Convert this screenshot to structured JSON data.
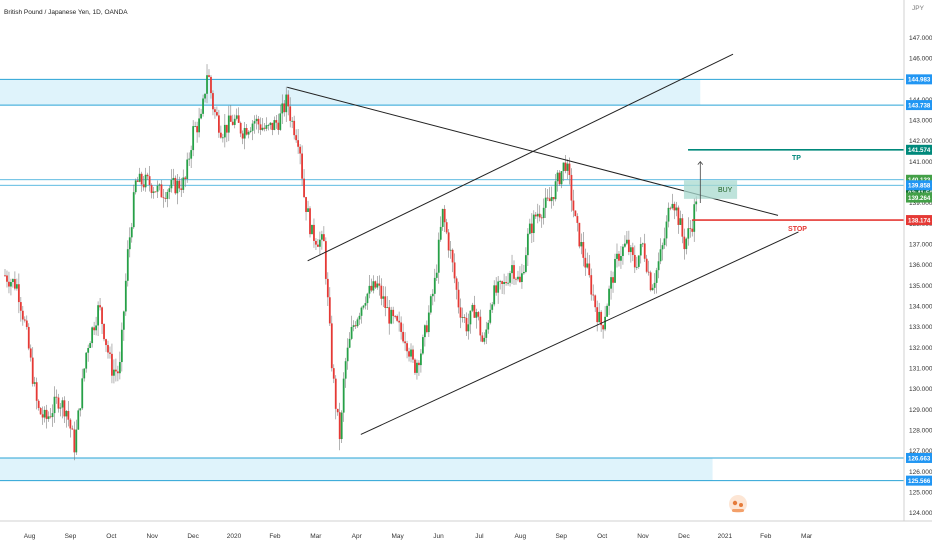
{
  "header": {
    "symbol_title": "British Pound / Japanese Yen, 1D, OANDA",
    "currency": "JPY"
  },
  "colors": {
    "up": "#26a047",
    "down": "#e53935",
    "wick": "#808080",
    "zone_fill": "#dff3fb",
    "zone_line": "#29a3d6",
    "trend_line": "#222222",
    "tp": "#00897b",
    "stop": "#e53935",
    "price_bg": "#43a047",
    "timer_bg": "#0d6e2c",
    "level_blue": "#2196f3",
    "buy_zone": "#a8d9cf"
  },
  "chart_data": {
    "type": "candlestick",
    "title": "British Pound / Japanese Yen, 1D, OANDA",
    "ylim": [
      123.9,
      147.3
    ],
    "y_ticks": [
      "124.000",
      "125.000",
      "126.000",
      "127.000",
      "128.000",
      "129.000",
      "130.000",
      "131.000",
      "132.000",
      "133.000",
      "134.000",
      "135.000",
      "136.000",
      "137.000",
      "138.000",
      "139.000",
      "140.000",
      "141.000",
      "142.000",
      "143.000",
      "144.000",
      "145.000",
      "146.000",
      "147.000"
    ],
    "x_ticks": [
      {
        "label": "Aug",
        "t": 0.6
      },
      {
        "label": "Sep",
        "t": 1.6
      },
      {
        "label": "Oct",
        "t": 2.6
      },
      {
        "label": "Nov",
        "t": 3.6
      },
      {
        "label": "Dec",
        "t": 4.6
      },
      {
        "label": "2020",
        "t": 5.6
      },
      {
        "label": "Feb",
        "t": 6.6
      },
      {
        "label": "Mar",
        "t": 7.6
      },
      {
        "label": "Apr",
        "t": 8.6
      },
      {
        "label": "May",
        "t": 9.6
      },
      {
        "label": "Jun",
        "t": 10.6
      },
      {
        "label": "Jul",
        "t": 11.6
      },
      {
        "label": "Aug",
        "t": 12.6
      },
      {
        "label": "Sep",
        "t": 13.6
      },
      {
        "label": "Oct",
        "t": 14.6
      },
      {
        "label": "Nov",
        "t": 15.6
      },
      {
        "label": "Dec",
        "t": 16.6
      },
      {
        "label": "2021",
        "t": 17.6
      },
      {
        "label": "Feb",
        "t": 18.6
      },
      {
        "label": "Mar",
        "t": 19.6
      }
    ],
    "price_path": [
      [
        0,
        135.5
      ],
      [
        0.3,
        135.0
      ],
      [
        0.5,
        133.0
      ],
      [
        0.8,
        129.0
      ],
      [
        1.0,
        128.5
      ],
      [
        1.3,
        129.5
      ],
      [
        1.5,
        129.0
      ],
      [
        1.7,
        127.2
      ],
      [
        2.0,
        132.0
      ],
      [
        2.3,
        134.0
      ],
      [
        2.6,
        131.0
      ],
      [
        2.8,
        130.8
      ],
      [
        3.0,
        136.5
      ],
      [
        3.2,
        140.0
      ],
      [
        3.5,
        140.0
      ],
      [
        3.8,
        139.5
      ],
      [
        4.1,
        139.8
      ],
      [
        4.4,
        140.0
      ],
      [
        4.6,
        142.5
      ],
      [
        4.8,
        143.0
      ],
      [
        4.95,
        145.5
      ],
      [
        5.1,
        143.5
      ],
      [
        5.3,
        142.5
      ],
      [
        5.6,
        143.0
      ],
      [
        5.8,
        142.5
      ],
      [
        6.1,
        143.0
      ],
      [
        6.4,
        142.5
      ],
      [
        6.7,
        143.0
      ],
      [
        6.9,
        144.0
      ],
      [
        7.0,
        143.0
      ],
      [
        7.2,
        142.0
      ],
      [
        7.3,
        139.5
      ],
      [
        7.5,
        137.5
      ],
      [
        7.8,
        137.0
      ],
      [
        8.0,
        131.0
      ],
      [
        8.1,
        129.0
      ],
      [
        8.2,
        127.5
      ],
      [
        8.3,
        131.0
      ],
      [
        8.5,
        133.0
      ],
      [
        8.8,
        134.5
      ],
      [
        9.1,
        135.0
      ],
      [
        9.4,
        133.5
      ],
      [
        9.6,
        133.0
      ],
      [
        9.8,
        132.5
      ],
      [
        10.0,
        131.0
      ],
      [
        10.2,
        132.0
      ],
      [
        10.5,
        135.0
      ],
      [
        10.7,
        138.5
      ],
      [
        10.9,
        136.5
      ],
      [
        11.1,
        134.0
      ],
      [
        11.3,
        133.0
      ],
      [
        11.5,
        134.0
      ],
      [
        11.7,
        132.0
      ],
      [
        11.9,
        134.5
      ],
      [
        12.2,
        135.0
      ],
      [
        12.4,
        136.0
      ],
      [
        12.6,
        135.0
      ],
      [
        12.8,
        137.5
      ],
      [
        13.0,
        138.5
      ],
      [
        13.3,
        139.0
      ],
      [
        13.5,
        140.0
      ],
      [
        13.7,
        141.0
      ],
      [
        13.8,
        140.0
      ],
      [
        13.95,
        138.0
      ],
      [
        14.2,
        136.0
      ],
      [
        14.5,
        133.5
      ],
      [
        14.6,
        133.0
      ],
      [
        14.8,
        135.0
      ],
      [
        15.0,
        136.5
      ],
      [
        15.2,
        137.0
      ],
      [
        15.4,
        136.0
      ],
      [
        15.6,
        137.0
      ],
      [
        15.8,
        135.0
      ],
      [
        15.9,
        135.5
      ],
      [
        16.1,
        137.0
      ],
      [
        16.3,
        139.5
      ],
      [
        16.5,
        138.0
      ],
      [
        16.6,
        137.0
      ],
      [
        16.8,
        138.0
      ],
      [
        16.9,
        139.3
      ]
    ],
    "zones": [
      {
        "from": 143.738,
        "to": 144.983,
        "x_end": 17.0
      },
      {
        "from": 125.566,
        "to": 126.663,
        "x_end": 17.3
      }
    ],
    "horizontal_lines": [
      140.123,
      139.858
    ],
    "trendlines": [
      {
        "x1": 6.9,
        "y1": 144.6,
        "x2": 18.9,
        "y2": 138.4
      },
      {
        "x1": 7.4,
        "y1": 136.2,
        "x2": 17.8,
        "y2": 146.2
      },
      {
        "x1": 8.7,
        "y1": 127.8,
        "x2": 19.4,
        "y2": 137.6
      }
    ],
    "annotations": {
      "tp": {
        "label": "TP",
        "price": 141.574,
        "x_start": 16.7
      },
      "stop": {
        "label": "STOP",
        "price": 138.174,
        "x_start": 16.8
      },
      "buy": {
        "label": "BUY",
        "top": 140.1,
        "bottom": 139.2,
        "x1": 16.6,
        "x2": 17.9
      },
      "entry_marker": {
        "x": 17.0,
        "y1": 139.0,
        "y2": 141.0
      }
    },
    "price_labels": [
      {
        "text": "144.983",
        "price": 144.983,
        "kind": "blue"
      },
      {
        "text": "143.738",
        "price": 143.738,
        "kind": "blue"
      },
      {
        "text": "141.574",
        "price": 141.574,
        "kind": "tp"
      },
      {
        "text": "140.123",
        "price": 140.123,
        "kind": "green"
      },
      {
        "text": "02:41:50",
        "price": 139.5,
        "kind": "timer"
      },
      {
        "text": "139.858",
        "price": 139.858,
        "kind": "blue"
      },
      {
        "text": "139.264",
        "price": 139.264,
        "kind": "green"
      },
      {
        "text": "138.174",
        "price": 138.174,
        "kind": "stop"
      },
      {
        "text": "126.663",
        "price": 126.663,
        "kind": "blue"
      },
      {
        "text": "125.566",
        "price": 125.566,
        "kind": "blue"
      }
    ]
  }
}
